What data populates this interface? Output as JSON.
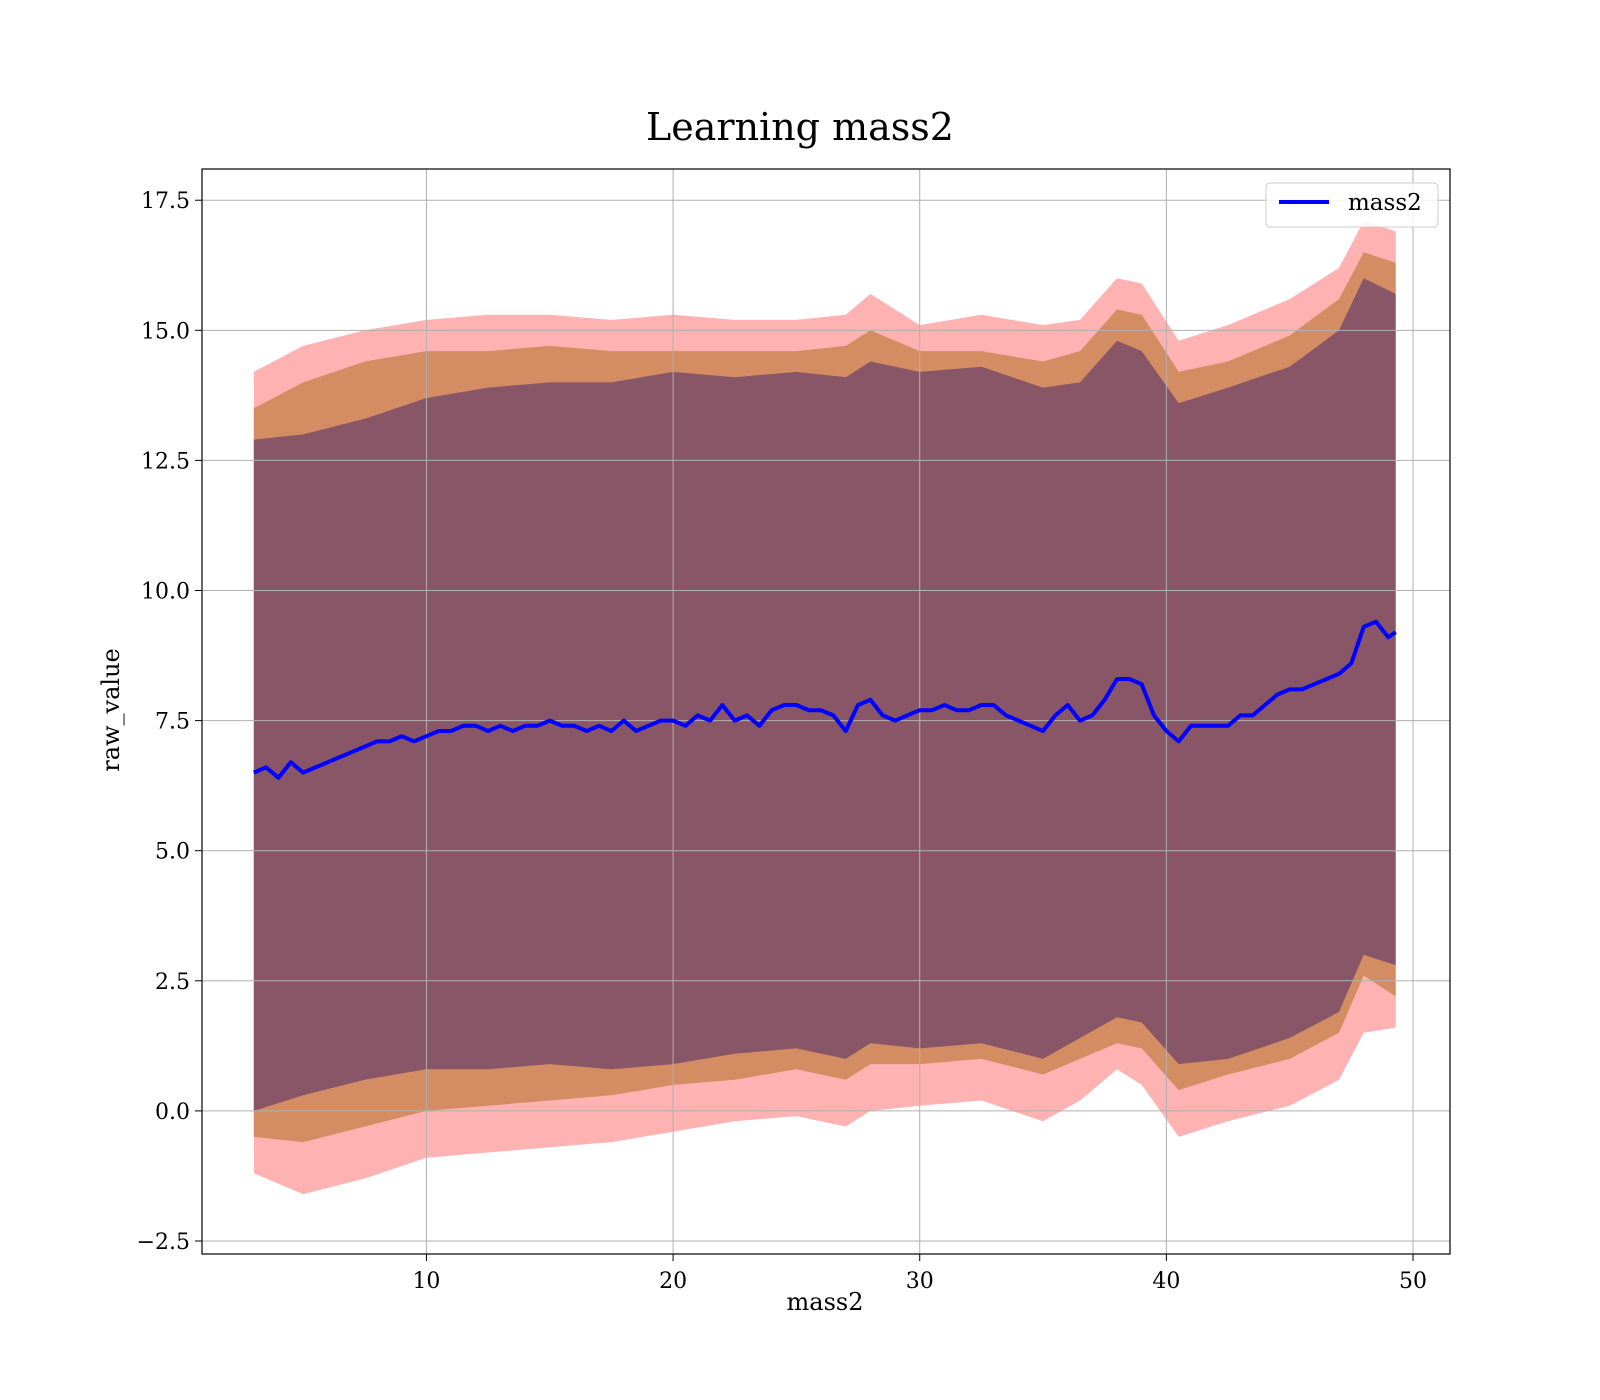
{
  "chart_data": {
    "type": "line",
    "title": "Learning mass2",
    "xlabel": "mass2",
    "ylabel": "raw_value",
    "xlim": [
      0.9,
      51.5
    ],
    "ylim": [
      -2.75,
      18.1
    ],
    "xticks": [
      10,
      20,
      30,
      40,
      50
    ],
    "xtick_labels": [
      "10",
      "20",
      "30",
      "40",
      "50"
    ],
    "yticks": [
      -2.5,
      0.0,
      2.5,
      5.0,
      7.5,
      10.0,
      12.5,
      15.0,
      17.5
    ],
    "ytick_labels": [
      "−2.5",
      "0.0",
      "2.5",
      "5.0",
      "7.5",
      "10.0",
      "12.5",
      "15.0",
      "17.5"
    ],
    "grid": true,
    "legend": {
      "position": "top-right",
      "entries": [
        "mass2"
      ]
    },
    "colors": {
      "line": "#0000ff",
      "band_outer": "#ff0000",
      "band_middle": "#a06000",
      "band_inner": "#4a2a6e",
      "grid": "#b0b0b0"
    },
    "series": [
      {
        "name": "mass2",
        "x": [
          3.0,
          3.5,
          4.0,
          4.5,
          5.0,
          5.5,
          6.0,
          6.5,
          7.0,
          7.5,
          8.0,
          8.5,
          9.0,
          9.5,
          10.0,
          10.5,
          11.0,
          11.5,
          12.0,
          12.5,
          13.0,
          13.5,
          14.0,
          14.5,
          15.0,
          15.5,
          16.0,
          16.5,
          17.0,
          17.5,
          18.0,
          18.5,
          19.0,
          19.5,
          20.0,
          20.5,
          21.0,
          21.5,
          22.0,
          22.5,
          23.0,
          23.5,
          24.0,
          24.5,
          25.0,
          25.5,
          26.0,
          26.5,
          27.0,
          27.5,
          28.0,
          28.5,
          29.0,
          29.5,
          30.0,
          30.5,
          31.0,
          31.5,
          32.0,
          32.5,
          33.0,
          33.5,
          34.0,
          34.5,
          35.0,
          35.5,
          36.0,
          36.5,
          37.0,
          37.5,
          38.0,
          38.5,
          39.0,
          39.5,
          40.0,
          40.5,
          41.0,
          41.5,
          42.0,
          42.5,
          43.0,
          43.5,
          44.0,
          44.5,
          45.0,
          45.5,
          46.0,
          46.5,
          47.0,
          47.5,
          48.0,
          48.5,
          49.0,
          49.3
        ],
        "y": [
          6.5,
          6.6,
          6.4,
          6.7,
          6.5,
          6.6,
          6.7,
          6.8,
          6.9,
          7.0,
          7.1,
          7.1,
          7.2,
          7.1,
          7.2,
          7.3,
          7.3,
          7.4,
          7.4,
          7.3,
          7.4,
          7.3,
          7.4,
          7.4,
          7.5,
          7.4,
          7.4,
          7.3,
          7.4,
          7.3,
          7.5,
          7.3,
          7.4,
          7.5,
          7.5,
          7.4,
          7.6,
          7.5,
          7.8,
          7.5,
          7.6,
          7.4,
          7.7,
          7.8,
          7.8,
          7.7,
          7.7,
          7.6,
          7.3,
          7.8,
          7.9,
          7.6,
          7.5,
          7.6,
          7.7,
          7.7,
          7.8,
          7.7,
          7.7,
          7.8,
          7.8,
          7.6,
          7.5,
          7.4,
          7.3,
          7.6,
          7.8,
          7.5,
          7.6,
          7.9,
          8.3,
          8.3,
          8.2,
          7.6,
          7.3,
          7.1,
          7.4,
          7.4,
          7.4,
          7.4,
          7.6,
          7.6,
          7.8,
          8.0,
          8.1,
          8.1,
          8.2,
          8.3,
          8.4,
          8.6,
          9.3,
          9.4,
          9.1,
          9.2
        ]
      }
    ],
    "bands": [
      {
        "name": "outer",
        "x": [
          3.0,
          5.0,
          7.5,
          10.0,
          12.5,
          15.0,
          17.5,
          20.0,
          22.5,
          25.0,
          27.0,
          28.0,
          30.0,
          32.5,
          35.0,
          36.5,
          38.0,
          39.0,
          40.5,
          42.5,
          45.0,
          47.0,
          48.0,
          49.3
        ],
        "lower": [
          -1.2,
          -1.6,
          -1.3,
          -0.9,
          -0.8,
          -0.7,
          -0.6,
          -0.4,
          -0.2,
          -0.1,
          -0.3,
          0.0,
          0.1,
          0.2,
          -0.2,
          0.2,
          0.8,
          0.5,
          -0.5,
          -0.2,
          0.1,
          0.6,
          1.5,
          1.6
        ],
        "upper": [
          14.2,
          14.7,
          15.0,
          15.2,
          15.3,
          15.3,
          15.2,
          15.3,
          15.2,
          15.2,
          15.3,
          15.7,
          15.1,
          15.3,
          15.1,
          15.2,
          16.0,
          15.9,
          14.8,
          15.1,
          15.6,
          16.2,
          17.1,
          16.9
        ]
      },
      {
        "name": "middle",
        "x": [
          3.0,
          5.0,
          7.5,
          10.0,
          12.5,
          15.0,
          17.5,
          20.0,
          22.5,
          25.0,
          27.0,
          28.0,
          30.0,
          32.5,
          35.0,
          36.5,
          38.0,
          39.0,
          40.5,
          42.5,
          45.0,
          47.0,
          48.0,
          49.3
        ],
        "lower": [
          -0.5,
          -0.6,
          -0.3,
          0.0,
          0.1,
          0.2,
          0.3,
          0.5,
          0.6,
          0.8,
          0.6,
          0.9,
          0.9,
          1.0,
          0.7,
          1.0,
          1.3,
          1.2,
          0.4,
          0.7,
          1.0,
          1.5,
          2.6,
          2.2
        ],
        "upper": [
          13.5,
          14.0,
          14.4,
          14.6,
          14.6,
          14.7,
          14.6,
          14.6,
          14.6,
          14.6,
          14.7,
          15.0,
          14.6,
          14.6,
          14.4,
          14.6,
          15.4,
          15.3,
          14.2,
          14.4,
          14.9,
          15.6,
          16.5,
          16.3
        ]
      },
      {
        "name": "inner",
        "x": [
          3.0,
          5.0,
          7.5,
          10.0,
          12.5,
          15.0,
          17.5,
          20.0,
          22.5,
          25.0,
          27.0,
          28.0,
          30.0,
          32.5,
          35.0,
          36.5,
          38.0,
          39.0,
          40.5,
          42.5,
          45.0,
          47.0,
          48.0,
          49.3
        ],
        "lower": [
          0.0,
          0.3,
          0.6,
          0.8,
          0.8,
          0.9,
          0.8,
          0.9,
          1.1,
          1.2,
          1.0,
          1.3,
          1.2,
          1.3,
          1.0,
          1.4,
          1.8,
          1.7,
          0.9,
          1.0,
          1.4,
          1.9,
          3.0,
          2.8
        ],
        "upper": [
          12.9,
          13.0,
          13.3,
          13.7,
          13.9,
          14.0,
          14.0,
          14.2,
          14.1,
          14.2,
          14.1,
          14.4,
          14.2,
          14.3,
          13.9,
          14.0,
          14.8,
          14.6,
          13.6,
          13.9,
          14.3,
          15.0,
          16.0,
          15.7
        ]
      }
    ]
  }
}
